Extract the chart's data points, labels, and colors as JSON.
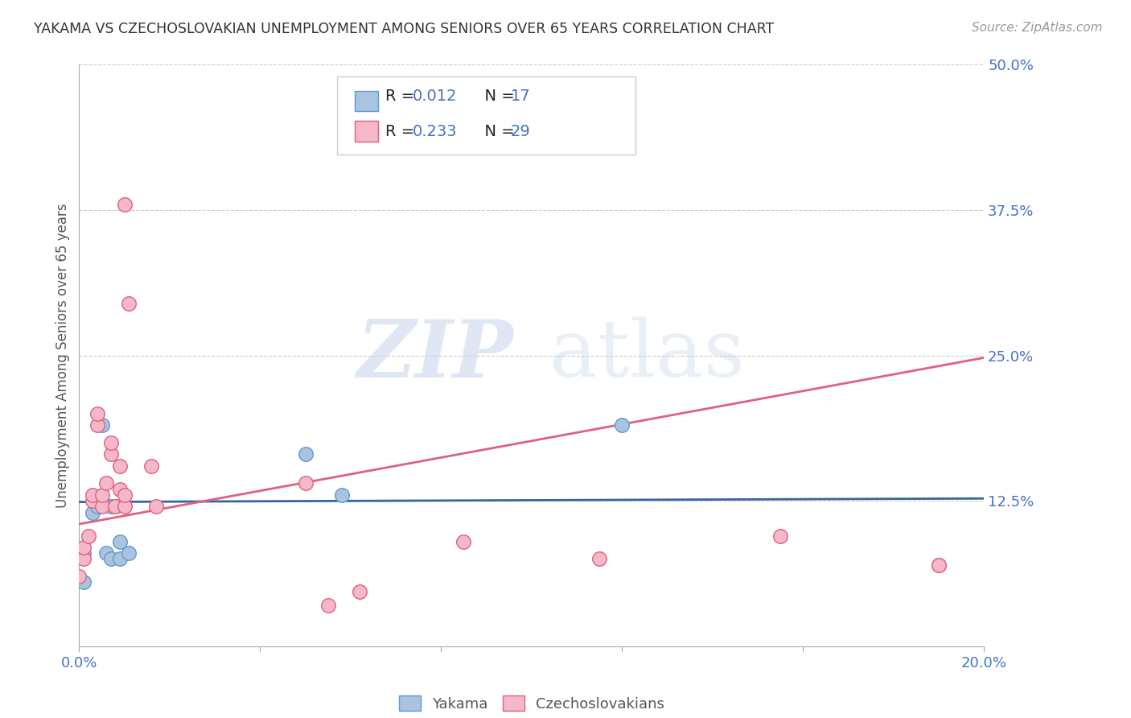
{
  "title": "YAKAMA VS CZECHOSLOVAKIAN UNEMPLOYMENT AMONG SENIORS OVER 65 YEARS CORRELATION CHART",
  "source": "Source: ZipAtlas.com",
  "ylabel_label": "Unemployment Among Seniors over 65 years",
  "xlim": [
    0.0,
    0.2
  ],
  "ylim": [
    0.0,
    0.5
  ],
  "xticks": [
    0.0,
    0.04,
    0.08,
    0.12,
    0.16,
    0.2
  ],
  "yticks": [
    0.0,
    0.125,
    0.25,
    0.375,
    0.5
  ],
  "ytick_labels": [
    "",
    "12.5%",
    "25.0%",
    "37.5%",
    "50.0%"
  ],
  "xtick_labels": [
    "0.0%",
    "",
    "",
    "",
    "",
    "20.0%"
  ],
  "background_color": "#ffffff",
  "grid_color": "#cccccc",
  "watermark_zip": "ZIP",
  "watermark_atlas": "atlas",
  "yakama_color": "#aac4e0",
  "yakama_edge_color": "#5b9bd5",
  "czech_color": "#f4b8c8",
  "czech_edge_color": "#e06080",
  "trend_yakama_color": "#3465a4",
  "trend_czech_color": "#e06080",
  "legend_r_yakama": "0.012",
  "legend_n_yakama": "17",
  "legend_r_czech": "0.233",
  "legend_n_czech": "29",
  "yakama_x": [
    0.001,
    0.001,
    0.003,
    0.004,
    0.005,
    0.005,
    0.006,
    0.007,
    0.007,
    0.008,
    0.009,
    0.009,
    0.011,
    0.05,
    0.058,
    0.12,
    0.19
  ],
  "yakama_y": [
    0.055,
    0.08,
    0.115,
    0.12,
    0.19,
    0.125,
    0.08,
    0.12,
    0.075,
    0.12,
    0.075,
    0.09,
    0.08,
    0.165,
    0.13,
    0.19,
    0.07
  ],
  "czech_x": [
    0.0,
    0.001,
    0.001,
    0.002,
    0.003,
    0.003,
    0.004,
    0.004,
    0.005,
    0.005,
    0.006,
    0.007,
    0.007,
    0.008,
    0.009,
    0.009,
    0.01,
    0.01,
    0.01,
    0.011,
    0.016,
    0.017,
    0.05,
    0.055,
    0.062,
    0.085,
    0.115,
    0.155,
    0.19
  ],
  "czech_y": [
    0.06,
    0.075,
    0.085,
    0.095,
    0.125,
    0.13,
    0.19,
    0.2,
    0.12,
    0.13,
    0.14,
    0.165,
    0.175,
    0.12,
    0.135,
    0.155,
    0.12,
    0.13,
    0.38,
    0.295,
    0.155,
    0.12,
    0.14,
    0.035,
    0.047,
    0.09,
    0.075,
    0.095,
    0.07
  ],
  "yakama_trend_x": [
    0.0,
    0.2
  ],
  "yakama_trend_y": [
    0.124,
    0.127
  ],
  "czech_trend_x": [
    0.0,
    0.2
  ],
  "czech_trend_y": [
    0.105,
    0.248
  ],
  "marker_size": 160
}
